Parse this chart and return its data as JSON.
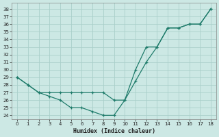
{
  "xlabel": "Humidex (Indice chaleur)",
  "line1_x": [
    0,
    1,
    2,
    3,
    4,
    5,
    6,
    7,
    8,
    9,
    10,
    11,
    12,
    13,
    14,
    15,
    16,
    17,
    18
  ],
  "line1_y": [
    29,
    28,
    27,
    27,
    27,
    27,
    27,
    27,
    27,
    26,
    26,
    30,
    33,
    33,
    35.5,
    35.5,
    36,
    36,
    38
  ],
  "line2_x": [
    0,
    1,
    2,
    3,
    4,
    5,
    6,
    7,
    8,
    9,
    10,
    11,
    12,
    13,
    14,
    15,
    16,
    17,
    18
  ],
  "line2_y": [
    29,
    28,
    27,
    26.5,
    26,
    25,
    25,
    24.5,
    24,
    24,
    26,
    28.5,
    31,
    33,
    35.5,
    35.5,
    36,
    36,
    38
  ],
  "line_color": "#1e7b6a",
  "bg_color": "#cce8e4",
  "grid_color": "#aacfca",
  "xlim": [
    -0.5,
    18.5
  ],
  "ylim": [
    23.5,
    38.8
  ],
  "yticks": [
    24,
    25,
    26,
    27,
    28,
    29,
    30,
    31,
    32,
    33,
    34,
    35,
    36,
    37,
    38
  ],
  "xticks": [
    0,
    1,
    2,
    3,
    4,
    5,
    6,
    7,
    8,
    9,
    10,
    11,
    12,
    13,
    14,
    15,
    16,
    17,
    18
  ],
  "markersize": 2.5,
  "linewidth": 0.9,
  "tick_fontsize": 5,
  "xlabel_fontsize": 6
}
